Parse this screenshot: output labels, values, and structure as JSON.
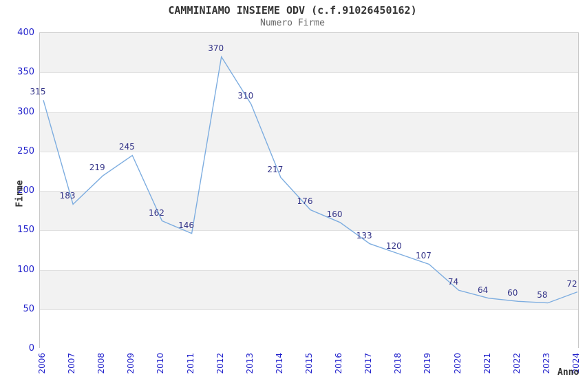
{
  "chart_data": {
    "type": "line",
    "title": "CAMMINIAMO INSIEME ODV (c.f.91026450162)",
    "subtitle": "Numero Firme",
    "xlabel": "Anno",
    "ylabel": "Firme",
    "categories": [
      "2006",
      "2007",
      "2008",
      "2009",
      "2010",
      "2011",
      "2012",
      "2013",
      "2014",
      "2015",
      "2016",
      "2017",
      "2018",
      "2019",
      "2020",
      "2021",
      "2022",
      "2023",
      "2024"
    ],
    "series": [
      {
        "name": "Numero Firme",
        "values": [
          315,
          183,
          219,
          245,
          162,
          146,
          370,
          310,
          217,
          176,
          160,
          133,
          120,
          107,
          74,
          64,
          60,
          58,
          72
        ]
      }
    ],
    "ylim": [
      0,
      400
    ],
    "yticks": [
      0,
      50,
      100,
      150,
      200,
      250,
      300,
      350,
      400
    ],
    "grid": true,
    "legend_position": "none",
    "alternating_bands": true,
    "data_labels_shown": true,
    "colors": {
      "line": "#7dade0",
      "data_label": "#333388",
      "tick_label": "#2222cc",
      "band_gray": "#f2f2f2",
      "band_white": "#ffffff",
      "grid_line": "#e0e0e0",
      "plot_border": "#c8c8c8",
      "title": "#333333",
      "subtitle": "#666666",
      "axis_title": "#333333"
    }
  }
}
